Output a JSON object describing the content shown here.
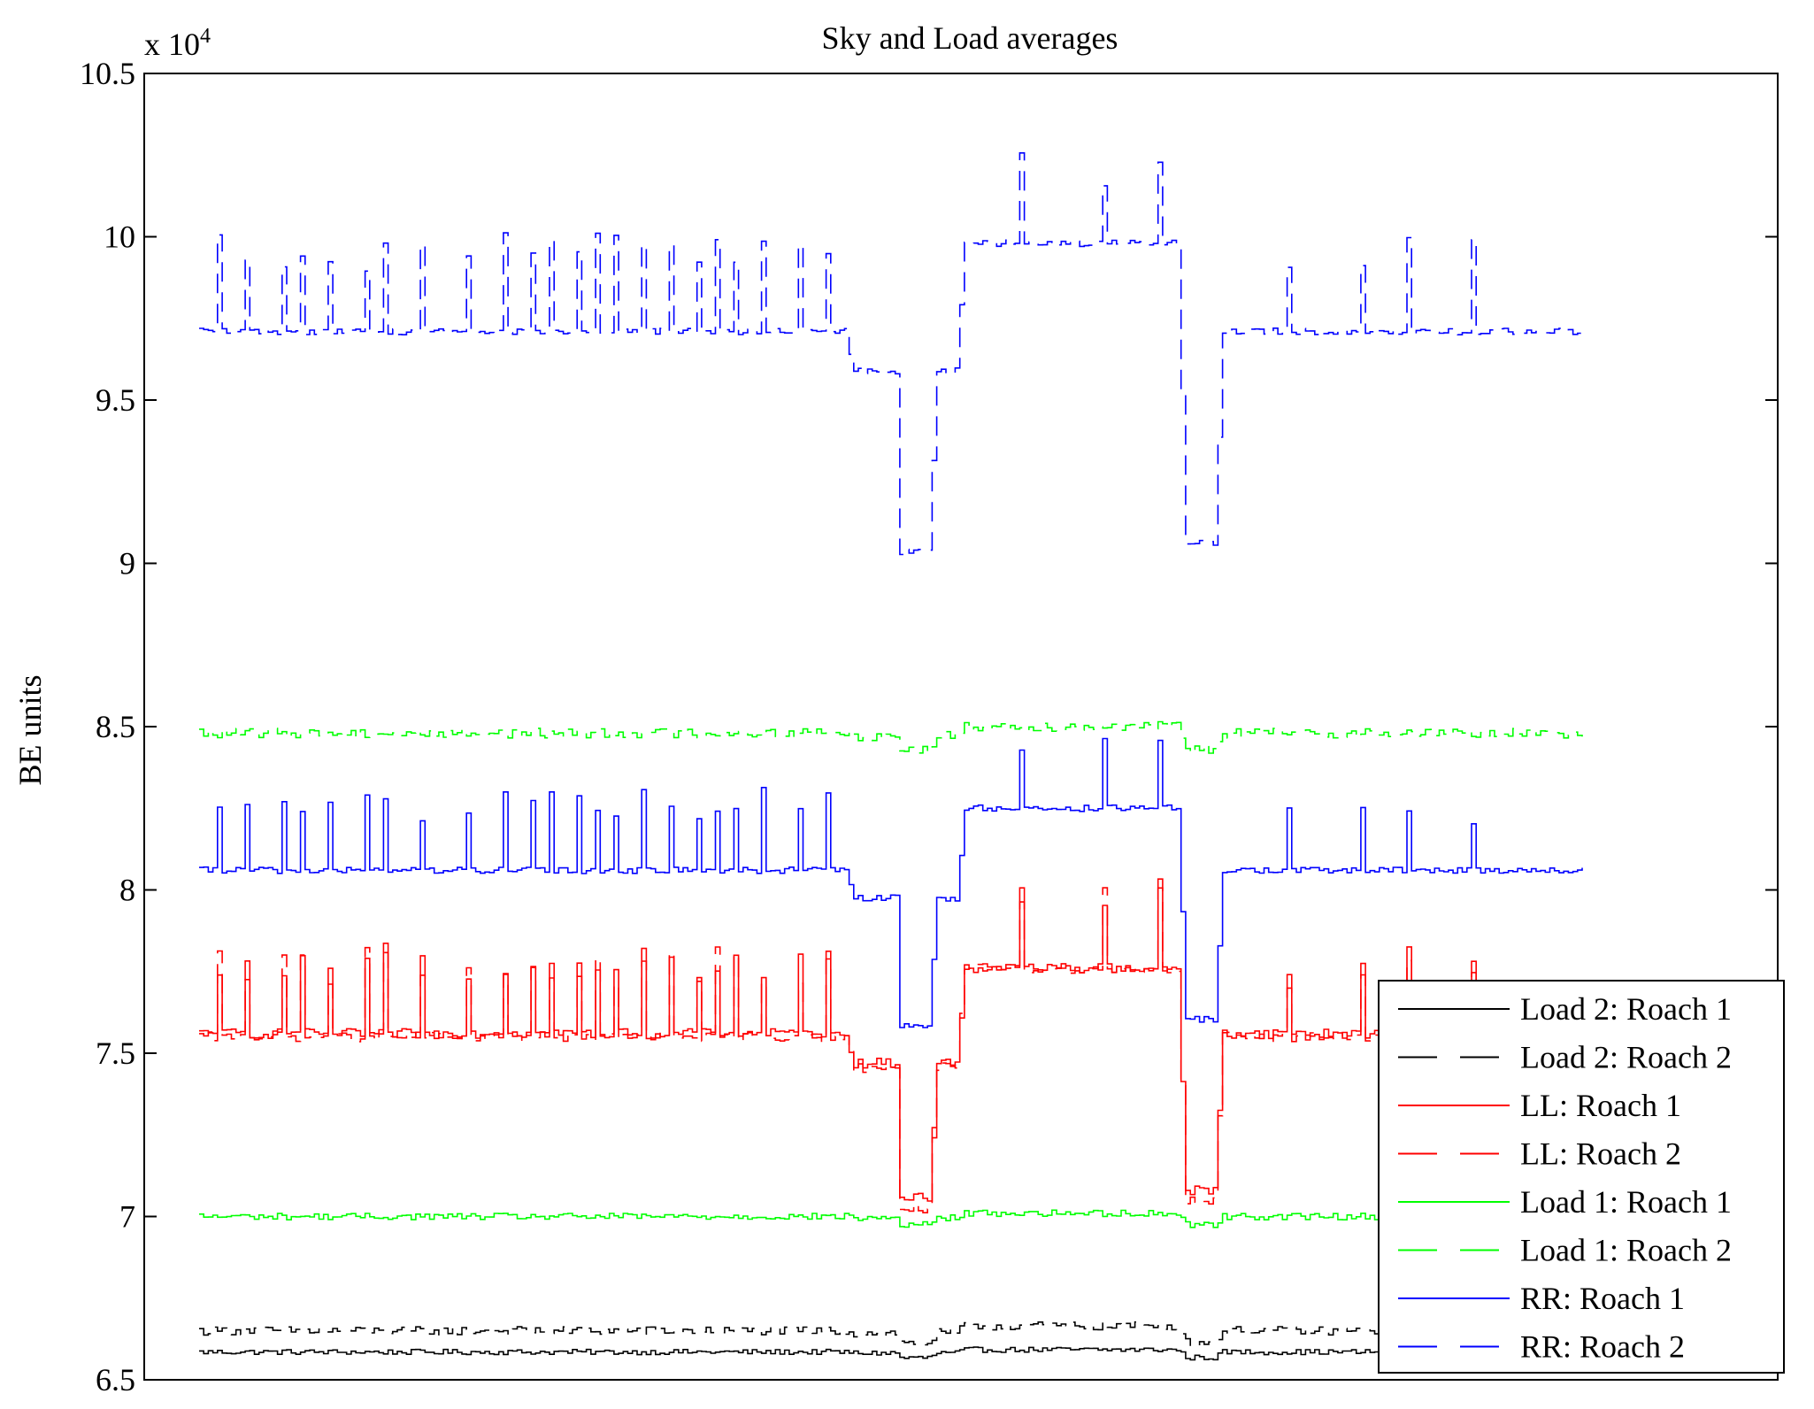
{
  "chart_data": {
    "type": "line",
    "title": "Sky and Load averages",
    "xlabel": "",
    "ylabel": "BE units",
    "y_scale_label_prefix": "x 10",
    "y_scale_label_exponent": "4",
    "ylim": [
      6.5,
      10.5
    ],
    "y_ticks": [
      "6.5",
      "7",
      "7.5",
      "8",
      "8.5",
      "9",
      "9.5",
      "10",
      "10.5"
    ],
    "x_ticks": [],
    "grid": false,
    "legend_position": "bottom-right",
    "n_points": 300,
    "x_range": [
      0,
      300
    ],
    "segment_template": [
      [
        0,
        140,
        0.0
      ],
      [
        142,
        151,
        -0.45
      ],
      [
        152,
        158,
        -2.5
      ],
      [
        160,
        164,
        -0.45
      ],
      [
        166,
        212,
        1.0
      ],
      [
        214,
        220,
        -2.4
      ],
      [
        222,
        300,
        0.0
      ]
    ],
    "series": [
      {
        "name": "Load 2: Roach 1",
        "color": "#000000",
        "dashed": false,
        "base": 6.585,
        "unit": 0.007,
        "noise": 0.008,
        "spike_height": 0.0
      },
      {
        "name": "Load 2: Roach 2",
        "color": "#000000",
        "dashed": true,
        "base": 6.65,
        "unit": 0.015,
        "noise": 0.013,
        "spike_height": 0.0
      },
      {
        "name": "LL: Roach 1",
        "color": "#ff0000",
        "dashed": false,
        "base": 7.56,
        "unit": 0.2,
        "noise": 0.015,
        "spike_height": 0.27
      },
      {
        "name": "LL: Roach 2",
        "color": "#ff0000",
        "dashed": true,
        "base": 7.55,
        "unit": 0.21,
        "noise": 0.015,
        "spike_height": 0.27
      },
      {
        "name": "Load 1: Roach 1",
        "color": "#00ff00",
        "dashed": false,
        "base": 7.0,
        "unit": 0.01,
        "noise": 0.01,
        "spike_height": 0.0
      },
      {
        "name": "Load 1: Roach 2",
        "color": "#00ff00",
        "dashed": true,
        "base": 8.48,
        "unit": 0.02,
        "noise": 0.015,
        "spike_height": 0.0
      },
      {
        "name": "RR: Roach 1",
        "color": "#0000ff",
        "dashed": false,
        "base": 8.06,
        "unit": 0.19,
        "noise": 0.01,
        "spike_height": 0.25
      },
      {
        "name": "RR: Roach 2",
        "color": "#0000ff",
        "dashed": true,
        "base": 9.71,
        "unit": 0.27,
        "noise": 0.01,
        "spike_height": 0.3
      }
    ],
    "spike_indices": [
      4,
      10,
      18,
      22,
      28,
      36,
      40,
      48,
      58,
      66,
      72,
      76,
      82,
      86,
      90,
      96,
      102,
      108,
      112,
      116,
      122,
      130,
      136,
      178,
      196,
      208,
      236,
      252,
      262,
      276
    ]
  }
}
